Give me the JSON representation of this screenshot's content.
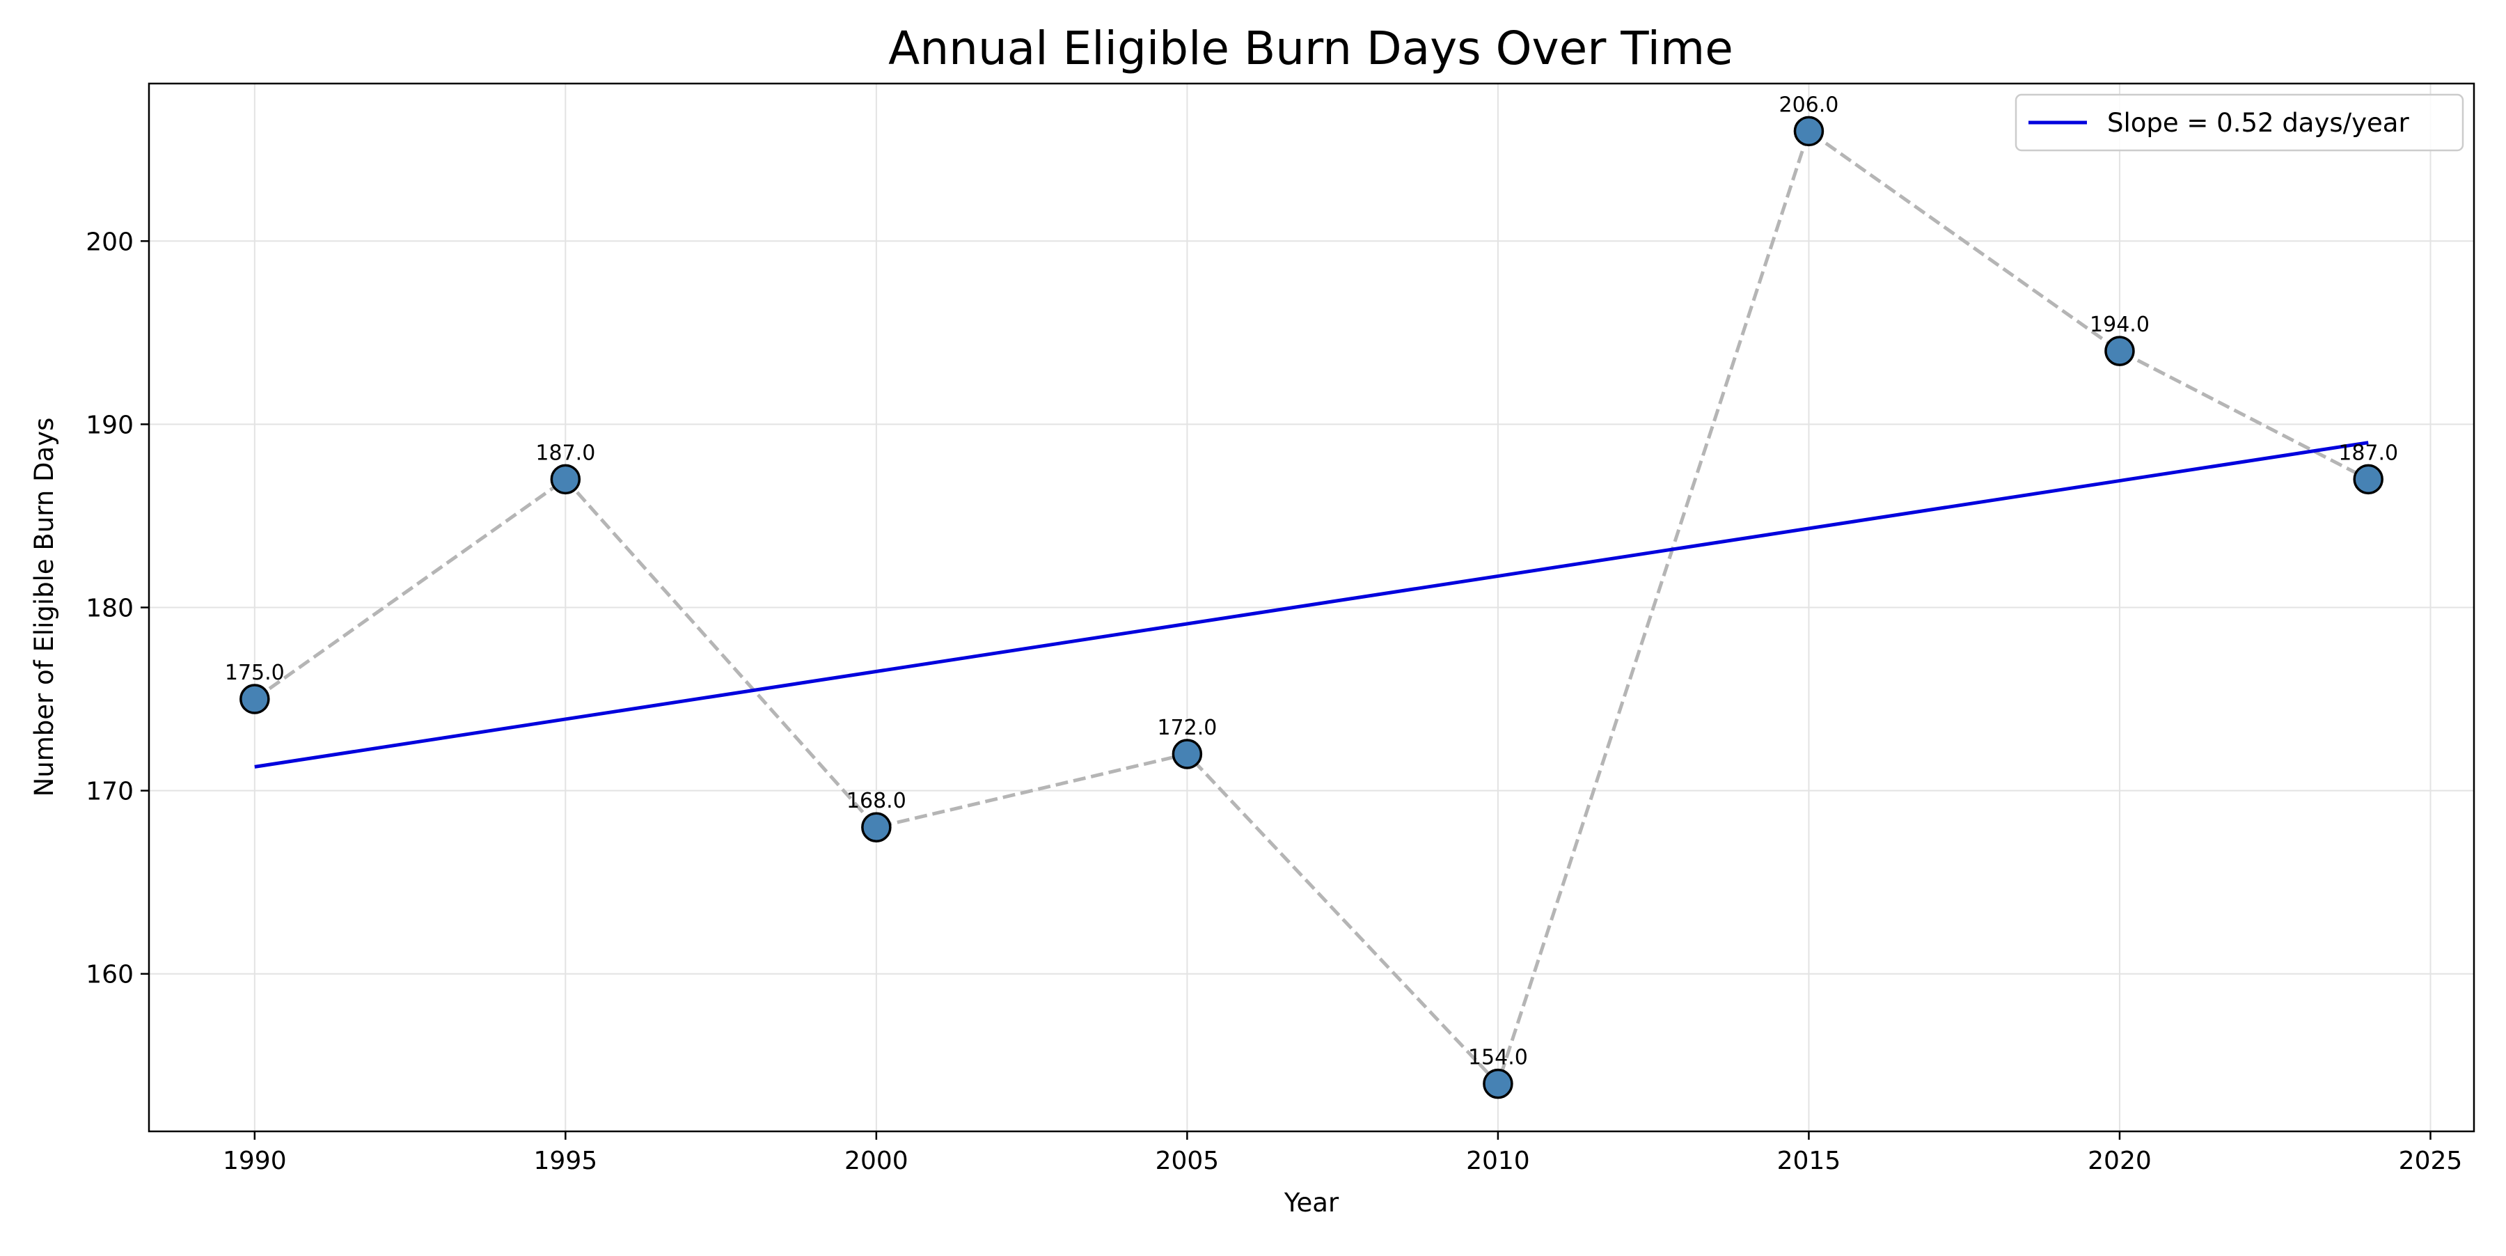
{
  "chart_data": {
    "type": "scatter",
    "title": "Annual Eligible Burn Days Over Time",
    "xlabel": "Year",
    "ylabel": "Number of Eligible Burn Days",
    "xlim": [
      1988.3,
      2025.7
    ],
    "ylim": [
      151.4,
      208.6
    ],
    "x_ticks": [
      1990,
      1995,
      2000,
      2005,
      2010,
      2015,
      2020,
      2025
    ],
    "y_ticks": [
      160,
      170,
      180,
      190,
      200
    ],
    "grid": true,
    "legend_position": "top-right",
    "series": [
      {
        "x": [
          1990,
          1995,
          2000,
          2005,
          2010,
          2015,
          2020,
          2024
        ],
        "values": [
          175,
          187,
          168,
          172,
          154,
          206,
          194,
          187
        ],
        "labels": [
          "175.0",
          "187.0",
          "168.0",
          "172.0",
          "154.0",
          "206.0",
          "194.0",
          "187.0"
        ],
        "marker_color": "#4682b4",
        "connector_color": "#b5b5b5"
      },
      {
        "name": "Slope = 0.52 days/year",
        "type": "line",
        "x": [
          1990,
          2024
        ],
        "values": [
          171.3,
          189.0
        ],
        "color": "#0000dd"
      }
    ]
  }
}
